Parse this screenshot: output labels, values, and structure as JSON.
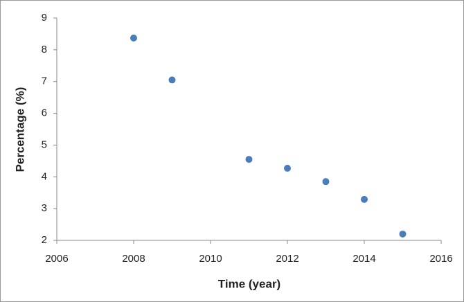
{
  "chart_data": {
    "type": "scatter",
    "x_label": "Time (year)",
    "y_label": "Percentage (%)",
    "x": [
      2008,
      2009,
      2011,
      2012,
      2013,
      2014,
      2015
    ],
    "series": [
      {
        "color": "#4a7ebb",
        "values": [
          8.37,
          7.05,
          4.55,
          4.27,
          3.85,
          3.29,
          2.2
        ]
      }
    ],
    "xlim": [
      2006,
      2016
    ],
    "xticks": [
      2006,
      2008,
      2010,
      2012,
      2014,
      2016
    ],
    "ylim": [
      2,
      9
    ],
    "yticks": [
      2,
      3,
      4,
      5,
      6,
      7,
      8,
      9
    ],
    "grid": false
  }
}
